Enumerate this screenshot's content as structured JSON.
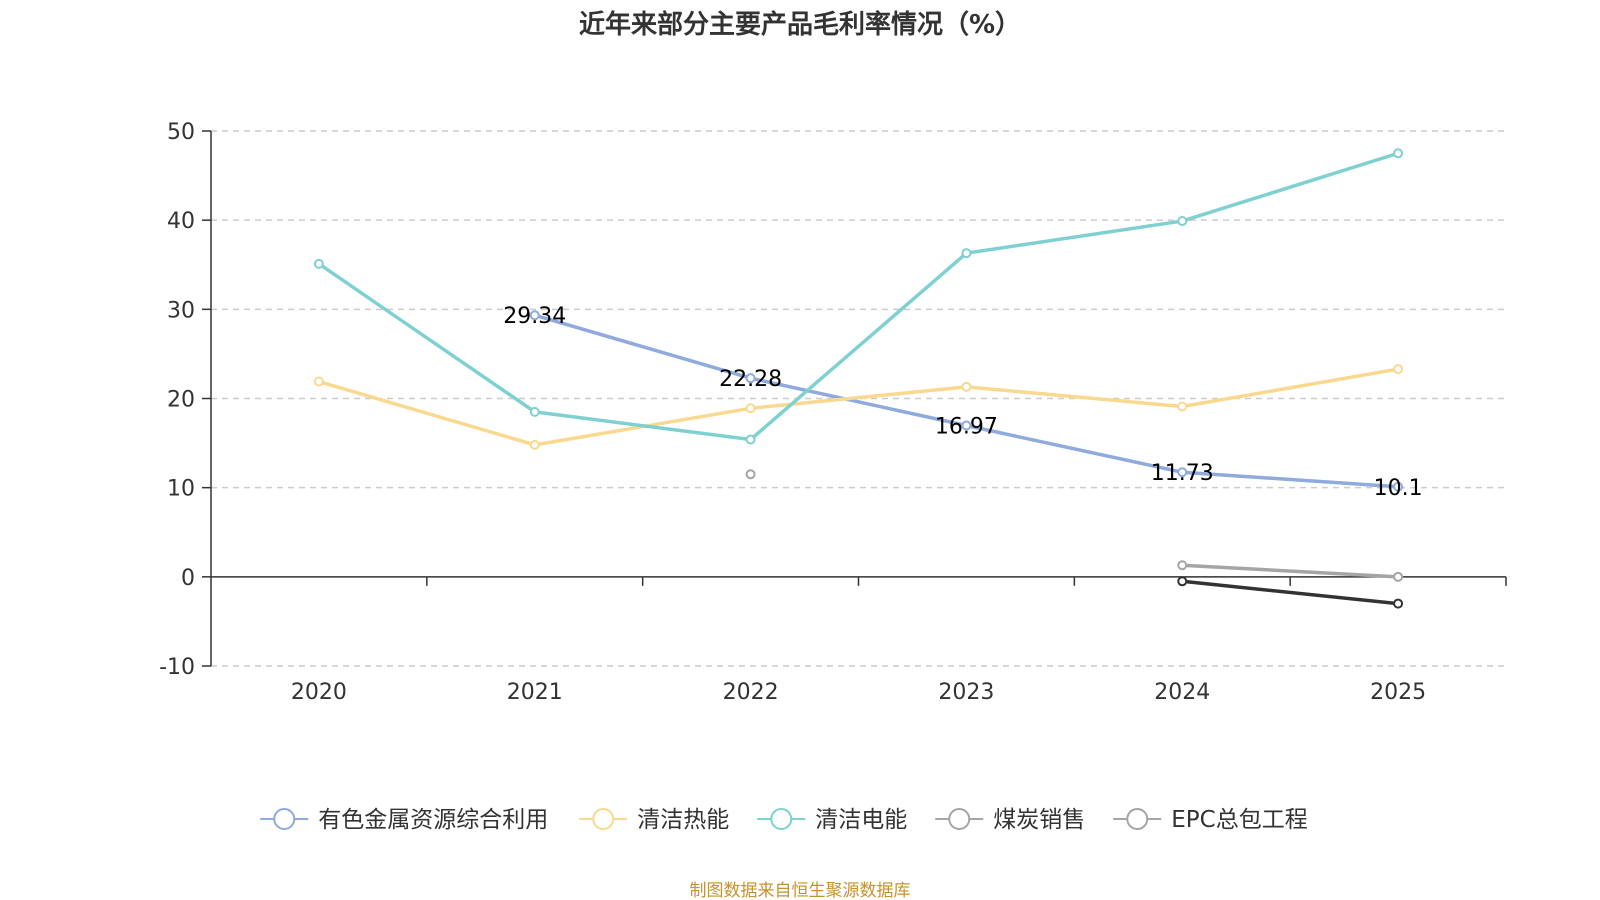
{
  "chart_data": {
    "type": "line",
    "title": "近年来部分主要产品毛利率情况（%）",
    "xlabel": "",
    "ylabel": "",
    "categories": [
      "2020",
      "2021",
      "2022",
      "2023",
      "2024",
      "2025"
    ],
    "ylim": [
      -10,
      50
    ],
    "yticks": [
      -10,
      0,
      10,
      20,
      30,
      40,
      50
    ],
    "grid": true,
    "legend_position": "bottom",
    "series": [
      {
        "name": "有色金属资源综合利用",
        "color": "#8faadc",
        "values": [
          null,
          29.34,
          22.28,
          16.97,
          11.73,
          10.1
        ],
        "labels": [
          null,
          "29.34",
          "22.28",
          "16.97",
          "11.73",
          "10.1"
        ]
      },
      {
        "name": "清洁热能",
        "color": "#f9d98f",
        "values": [
          21.9,
          14.8,
          18.9,
          21.3,
          19.1,
          23.3
        ]
      },
      {
        "name": "清洁电能",
        "color": "#7fd1d1",
        "values": [
          35.1,
          18.5,
          15.4,
          36.3,
          39.9,
          47.5
        ]
      },
      {
        "name": "煤炭销售",
        "color": "#a5a5a5",
        "values": [
          null,
          null,
          11.5,
          null,
          1.3,
          0.0
        ]
      },
      {
        "name": "EPC总包工程",
        "color": "#333333",
        "legend_color": "#a5a5a5",
        "values": [
          null,
          null,
          null,
          null,
          -0.5,
          -3.0
        ]
      }
    ]
  },
  "footer": {
    "source": "制图数据来自恒生聚源数据库"
  }
}
